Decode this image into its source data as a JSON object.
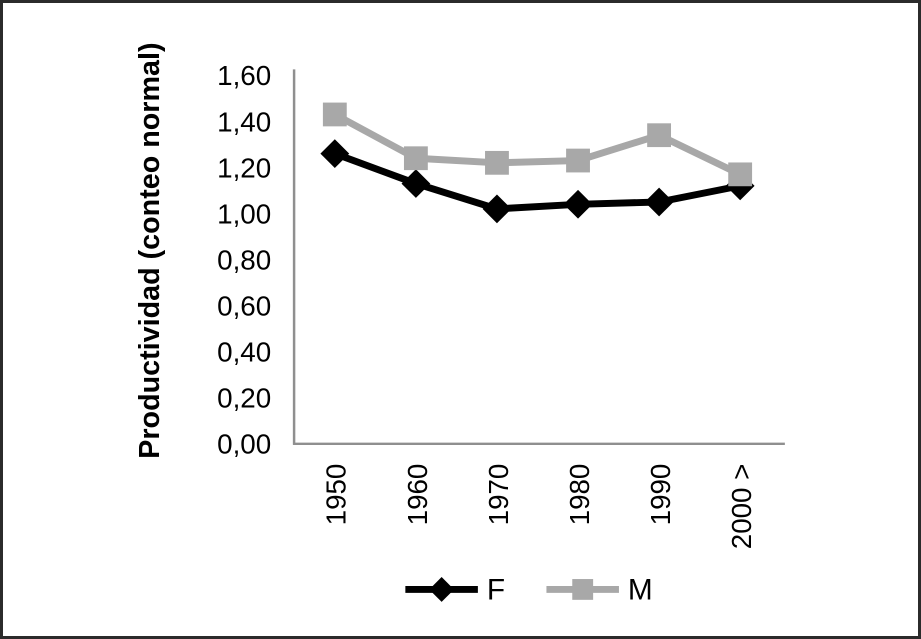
{
  "frame": {
    "background": "#ffffff",
    "border_color": "#2b2b2b"
  },
  "chart_data": {
    "type": "line",
    "title": "",
    "xlabel": "",
    "ylabel": "Productividad (conteo normal)",
    "categories": [
      "1950",
      "1960",
      "1970",
      "1980",
      "1990",
      "2000 >"
    ],
    "series": [
      {
        "name": "F",
        "marker": "diamond",
        "color": "#000000",
        "values": [
          1.26,
          1.13,
          1.02,
          1.04,
          1.05,
          1.12
        ]
      },
      {
        "name": "M",
        "marker": "square",
        "color": "#a8a8a8",
        "values": [
          1.43,
          1.24,
          1.22,
          1.23,
          1.34,
          1.17
        ]
      }
    ],
    "ylim": [
      0.0,
      1.6
    ],
    "ytick_step": 0.2,
    "ytick_labels": [
      "0,00",
      "0,20",
      "0,40",
      "0,60",
      "0,80",
      "1,00",
      "1,20",
      "1,40",
      "1,60"
    ],
    "decimal_separator": ",",
    "grid": false,
    "legend_position": "bottom",
    "axis_color": "#8f8f8f",
    "text_color": "#000000"
  }
}
